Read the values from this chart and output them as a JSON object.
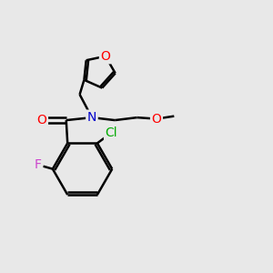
{
  "background_color": "#e8e8e8",
  "bond_color": "#000000",
  "bond_width": 1.8,
  "atom_colors": {
    "O": "#ff0000",
    "N": "#0000cc",
    "F": "#cc44cc",
    "Cl": "#00aa00",
    "C": "#000000"
  },
  "font_size": 10,
  "fig_width": 3.0,
  "fig_height": 3.0,
  "dpi": 100
}
